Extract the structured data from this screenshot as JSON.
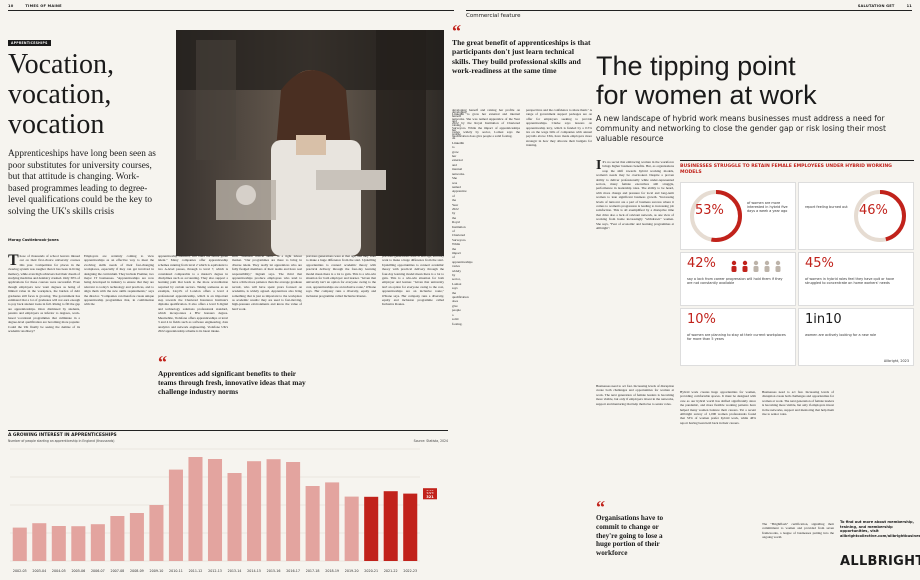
{
  "header": {
    "left_page_number": "10",
    "left_brand": "TIMES OF MAINE",
    "right_brand": "SALUTATION GET",
    "right_page_number": "11",
    "right_section": "Commercial feature"
  },
  "left_article": {
    "kicker": "APPRENTICESHIPS",
    "title_lines": [
      "Vocation,",
      "vocation,",
      "vocation"
    ],
    "standfirst": "Apprenticeships have long been seen as poor substitutes for university courses, but that attitude is changing. Work-based programmes leading to degree-level qualifications could be the key to solving the UK's skills crisis",
    "byline": "Morag Castlebrook-Jones",
    "drop_cap": "T",
    "col1": "hose of thousands of school leavers missed out on their first-choice university courses this year. Competition for places in the clearing system was tougher than it has been in living memory, while even high achievers had their dream of studying medicine and dentistry crushed. Only 30% of applications for these courses were successful. Even though employers now want degrees as being of limited value in the workplace, the burden of debt graduates still faces is growing. The government has estimated that a lot of graduates will not earn enough to pay back student loans in full. Rising to fill the gap are apprenticeships. Once dismissed by students, parents and employers as inferior to degrees, work-based vocational programmes that culminate in a degree-level qualification are becoming more popular. Could the UK finally be seeing the demise of its academic snobbery?",
    "col2": "Employers are certainly coming to view apprenticeships as an effective way to meet the evolving skills needs of their fast-changing workplaces, especially if they can get involved in designing the curriculum. They include Premier, two major IT businesses. \"Apprenticeships are now being developed in industry to ensure that they are relevant to today's technology and practices, and to align them with the new skills requirements,\" says the director. \"Companies can therefore create unique apprenticeship programmes that, in combination with the",
    "col3": "apprenticeship standard, will build the future green talent.\" Many companies offer apprenticeship schemes running from level 2 which is equivalent to two A-level passes, through to level 7, which is considered comparable to a master's degree in disciplines such as accounting. They also support a learning path that leads to the more accreditation required by certain sectors. Taking someone as an example, Lloyd's of London offers a level 4 professional apprenticeship, which is an important step towards the Chartered Insurance Institute's diploma qualification. It also offers a level 6 digital and technology solutions professional standard, which incorporates a BSc honours degree. Meanwhile, Vodafone offers apprenticeships at level 3 and 4 in fields such as software engineering, data analytics and network engineering. Vodafone UK's 2022 apprenticeship scheme is its latest intake.",
    "col4": "such \"business critical skills\" in a tight labour market. \"Our programmes are there to bring in diverse talent. They really let apprentices who are fully fledged members of their teams and have real responsibility,\" Ingram says. The third that apprenticeships produce employees who tend to have a little more patience than the average graduate recruit, who will have spent years focused on academia, is widely agreed. Apprentices also bring something that is just as important to the workplace as academic results: they are used to fast-moving, high-pressure environments and know the value of hard work.",
    "col5": "previous generations were at that age, and they want to make a huge difference from the start. Upskilling opportunities to connect academic theory with practical delivery through the four-day learning model mean there is a lot to gain. This is a win-win situation for both employer and learner. \"Given that university isn't an option for everyone owing to the cost, apprenticeships are an inclusive route,\" O'Kane says. Her company runs a diversity, equity and inclusion programme called Inclusive Routes.",
    "col6": "developing herself and raising her profile on LinkedIn to grow her external and internal networks. She was named Apprentice of the Year 2022 by the Royal Institution of Chartered Surveyors. While the impact of apprenticeships varies widely by sector, Lomax says the qualification does give people a solid footing.",
    "col7": "perspectives and the confidence to share them.\" A range of government support packages are on offer for employers seeking to provide apprenticeships. Clarke says lessons on apprenticeship levy, which is funded by a 0.5% tax on the wage bills of companies with annual payrolls above £3m, have made employers more strategic in how they allocate their budgets for training.",
    "quote1": "The great benefit of apprenticeships is that participants don't just learn technical skills. They build professional skills and work-readiness at the same time",
    "quote2": "Apprentices add significant benefits to their teams through fresh, innovative ideas that may challenge industry norms"
  },
  "chart_left": {
    "title": "A GROWING INTEREST IN APPRENTICESHIPS",
    "subtitle": "Number of people starting an apprenticeship in England (thousands)",
    "source": "Source: Statista, 2024"
  },
  "chart_data": {
    "type": "bar",
    "title": "A GROWING INTEREST IN APPRENTICESHIPS",
    "subtitle": "Number of people starting an apprenticeship in England (thousands)",
    "categories": [
      "2002-03",
      "2003-04",
      "2004-05",
      "2005-06",
      "2006-07",
      "2007-08",
      "2008-09",
      "2009-10",
      "2010-11",
      "2011-12",
      "2012-13",
      "2013-14",
      "2014-15",
      "2015-16",
      "2016-17",
      "2017-18",
      "2018-19",
      "2019-20",
      "2020-21",
      "2021-22",
      "2022-23"
    ],
    "values": [
      167,
      189,
      175,
      174,
      184,
      225,
      240,
      280,
      457,
      520,
      510,
      440,
      499,
      509,
      495,
      375,
      393,
      322,
      321,
      349,
      337
    ],
    "labeled_values": [
      "349",
      "337",
      "321"
    ],
    "xlabel": "",
    "ylabel": "",
    "ylim": [
      0,
      560
    ]
  },
  "right_article": {
    "title_lines": [
      "The tipping point",
      "for women at work"
    ],
    "standfirst": "A new landscape of hybrid work means businesses must address a need for community and networking to close the gender gap or risk losing their most valuable resource",
    "body_col1": "It's no secret that embracing women in the workforce brings higher business benefits. But, as organisations reap the shift towards hybrid working models, women's needs may be overlooked. Despite a proven ability to deliver professionally while under-represented sectors, many female executives still struggle, performance in leadership roles. The ability to be heard, with more change and pressure for local and long-term women to lean significant business growth. \"Increasing levels of turnover are a part of business success where it comes to women's progression is leading to increasing job satisfaction. This is all exemplified by a disruptive time that drive also a lack of relevant network, as one view of working from home increasingly \"withdrawn\" women. She says, \"Fear of economic and learning programmes at Allbright\".",
    "body_col2": "Hybrid work creates huge opportunities for women, providing comfortable spaces. It must be designed with care as our hybrid world has shifted significantly since the pandemic, and more flexible working patterns have helped many women balance their careers. Yet a recent Allbright survey of 1,000 women professionals found that 53% of women prefer hybrid work, while 46% report having been held back in their careers.",
    "body_col3": "Businesses need to act fast. Increasing levels of disruption create both challenges and opportunities for women at work. The next generation of female leaders is becoming more visible, but only if employers invest in the networks, support and mentoring that help them rise to senior roles.",
    "body_col4": "The \"Brightflash\" certification, signalling their commitment to women and provided from seven frameworks, a league of businesses putting into the ongoing world.",
    "quote": "Organisations have to commit to change or they're going to lose a huge portion of their workforce",
    "cta": "To find out more about membership, training, and membership opportunities, visit allbrightcollective.com/allbrightbusiness",
    "logo": "ALLBRIGHT."
  },
  "stats_panel": {
    "title": "BUSINESSES STRUGGLE TO RETAIN FEMALE EMPLOYEES UNDER HYBRID WORKING MODELS",
    "stats": [
      {
        "value": "53%",
        "label": "of women are more interested in hybrid five days a week a year ago",
        "fraction": 0.53
      },
      {
        "value": "46%",
        "label": "report feeling burned out",
        "fraction": 0.46
      },
      {
        "value": "42%",
        "label": "say a lack from career progression will hold them if they are not constantly available"
      },
      {
        "value": "45%",
        "label": "of women in hybrid roles feel they have quit or have struggled to concentrate on home workers' needs"
      },
      {
        "value": "10%",
        "label": "of women are planning to stay at their current workplaces for more than 5 years"
      },
      {
        "value": "1in10",
        "label": "women are actively looking for a new role"
      }
    ],
    "source": "Allbright, 2023"
  }
}
